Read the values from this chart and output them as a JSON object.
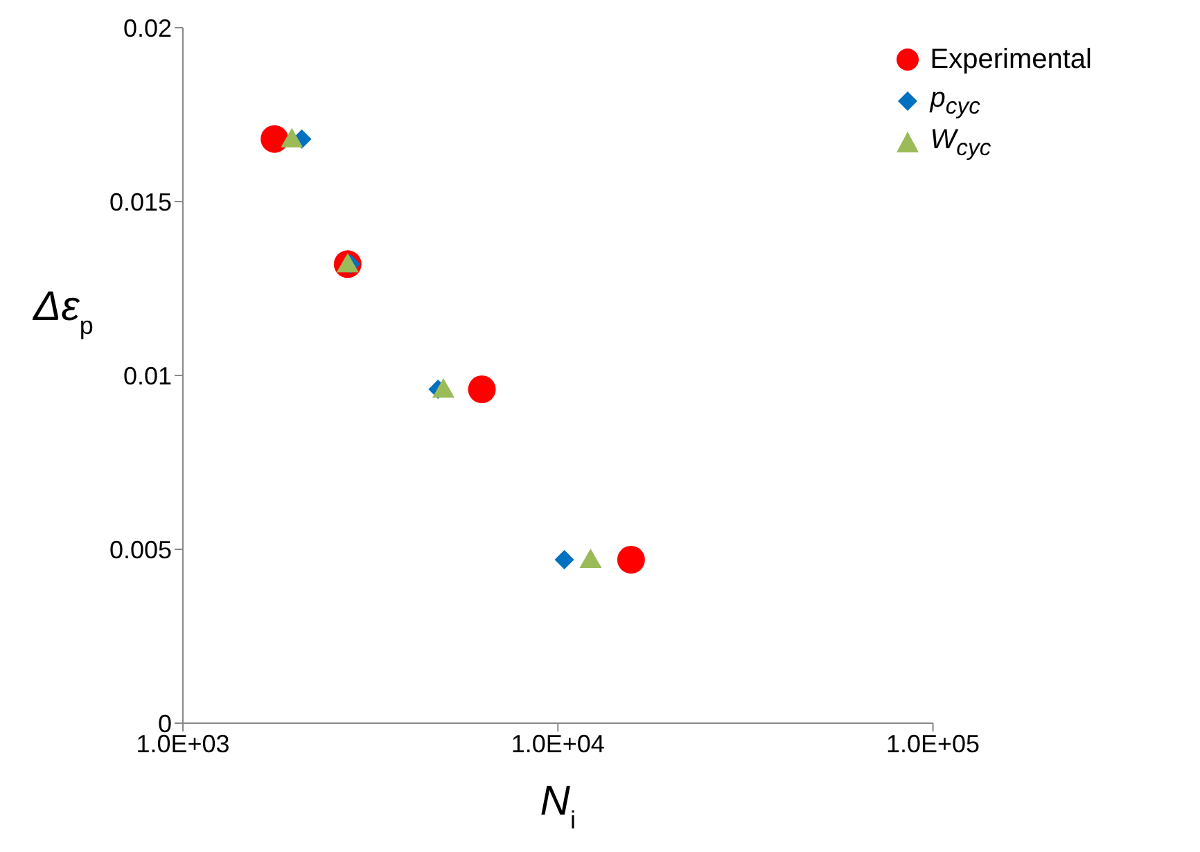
{
  "chart_data": {
    "type": "scatter",
    "xlabel": "N$_{i}$",
    "ylabel": "Δε$_{p}$",
    "log": "x",
    "xlim": [
      1000,
      100000
    ],
    "xticks": [
      {
        "value": 1000,
        "label": "1.0E+03"
      },
      {
        "value": 10000,
        "label": "1.0E+04"
      },
      {
        "value": 100000,
        "label": "1.0E+05"
      }
    ],
    "ylim": [
      0,
      0.02
    ],
    "yticks": [
      0,
      0.005,
      0.01,
      0.015,
      0.02
    ],
    "grid": false,
    "legend": "top right",
    "series": [
      {
        "name": "Experimental",
        "color": "#ff0000",
        "marker": "circle",
        "x": [
          1755,
          2750,
          6270,
          15670
        ],
        "values": [
          0.0168,
          0.0132,
          0.0096,
          0.0047
        ]
      },
      {
        "name": "p$_{cyc}$",
        "color": "#0070c0",
        "marker": "diamond",
        "x": [
          2075,
          2800,
          4790,
          10400
        ],
        "values": [
          0.0168,
          0.0132,
          0.0096,
          0.0047
        ]
      },
      {
        "name": "W$_{cyc}$",
        "color": "#9bbb59",
        "marker": "triangle",
        "x": [
          1952,
          2750,
          4950,
          12220
        ],
        "values": [
          0.0168,
          0.0132,
          0.0096,
          0.0047
        ]
      }
    ]
  }
}
